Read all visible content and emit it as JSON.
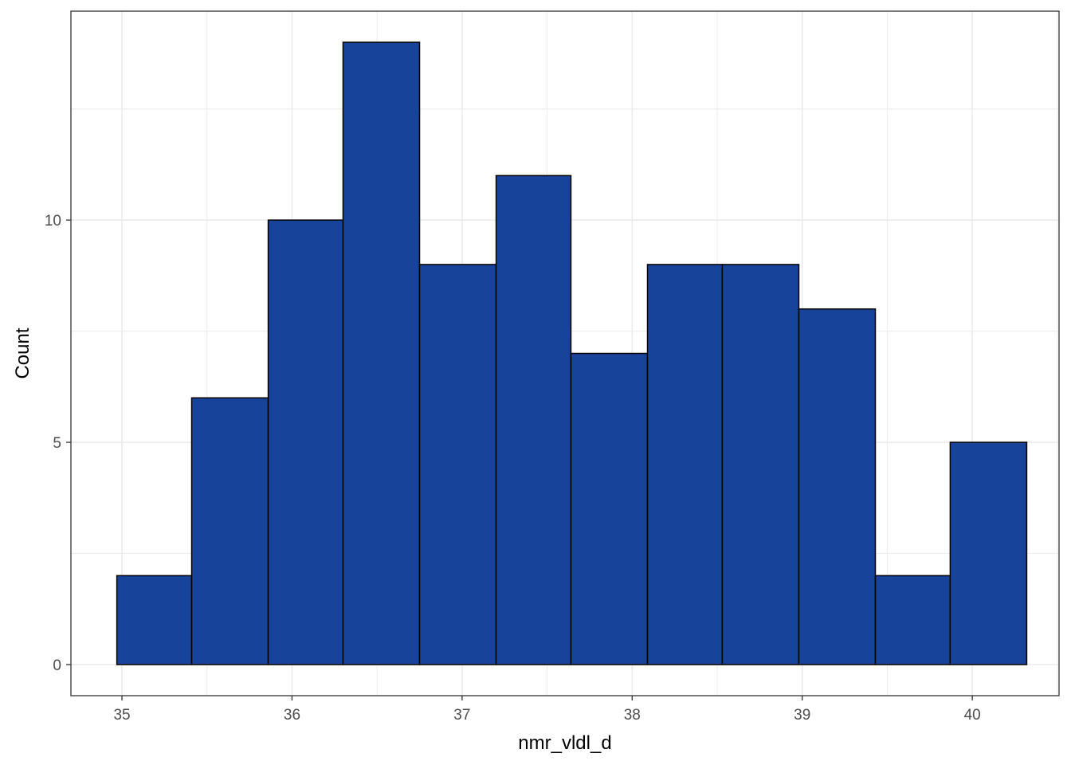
{
  "chart_data": {
    "type": "bar",
    "subtype": "histogram",
    "title": "",
    "xlabel": "nmr_vldl_d",
    "ylabel": "Count",
    "xlim": [
      34.7,
      40.51
    ],
    "ylim": [
      -0.7,
      14.7
    ],
    "x_ticks": [
      35,
      36,
      37,
      38,
      39,
      40
    ],
    "x_tick_labels": [
      "35",
      "36",
      "37",
      "38",
      "39",
      "40"
    ],
    "y_ticks": [
      0,
      5,
      10
    ],
    "y_tick_labels": [
      "0",
      "5",
      "10"
    ],
    "bins": [
      {
        "x0": 34.97,
        "x1": 35.41,
        "count": 2
      },
      {
        "x0": 35.41,
        "x1": 35.86,
        "count": 6
      },
      {
        "x0": 35.86,
        "x1": 36.3,
        "count": 10
      },
      {
        "x0": 36.3,
        "x1": 36.75,
        "count": 14
      },
      {
        "x0": 36.75,
        "x1": 37.2,
        "count": 9
      },
      {
        "x0": 37.2,
        "x1": 37.64,
        "count": 11
      },
      {
        "x0": 37.64,
        "x1": 38.09,
        "count": 7
      },
      {
        "x0": 38.09,
        "x1": 38.53,
        "count": 9
      },
      {
        "x0": 38.53,
        "x1": 38.98,
        "count": 9
      },
      {
        "x0": 38.98,
        "x1": 39.43,
        "count": 8
      },
      {
        "x0": 39.43,
        "x1": 39.87,
        "count": 2
      },
      {
        "x0": 39.87,
        "x1": 40.32,
        "count": 5
      }
    ],
    "grid": true,
    "colors": {
      "bar_fill": "#18439A",
      "bar_stroke": "#000000",
      "grid": "#EBEBEB",
      "panel_border": "#333333"
    }
  }
}
